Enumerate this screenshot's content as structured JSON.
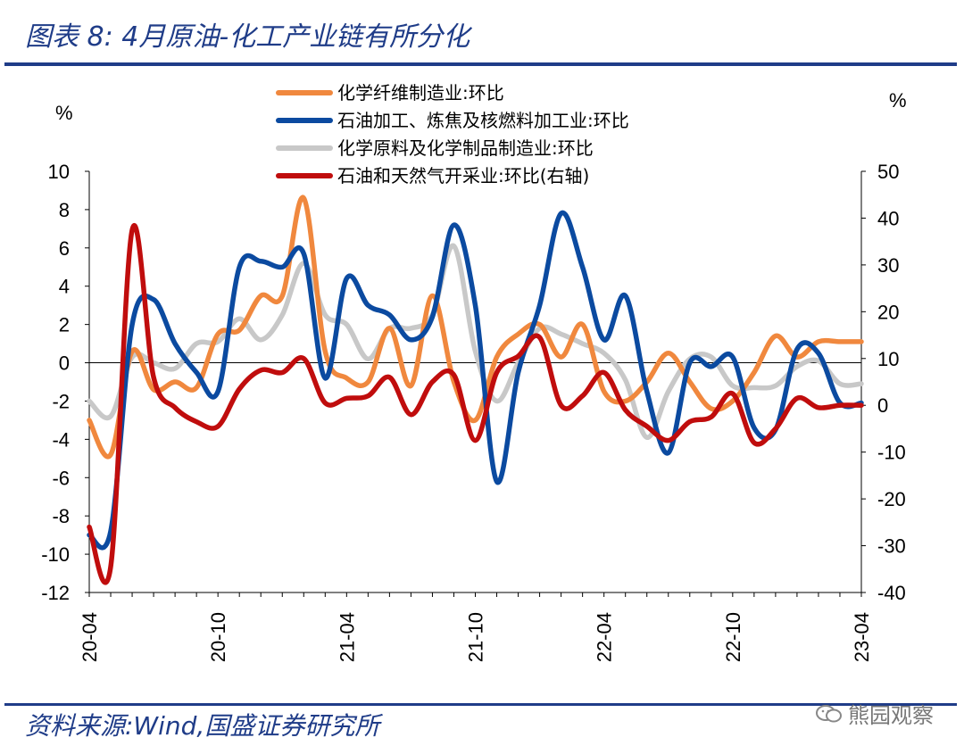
{
  "header": {
    "title": "图表 8:  4月原油-化工产业链有所分化"
  },
  "footer": {
    "source": "资料来源:Wind,国盛证券研究所",
    "watermark": "熊园观察"
  },
  "colors": {
    "brand_blue": "#1f3c88",
    "series_orange": "#f0883e",
    "series_blue": "#0b4aa0",
    "series_gray": "#c8c8c8",
    "series_red": "#c00d0d"
  },
  "chart_data": {
    "type": "line",
    "left_unit": "%",
    "right_unit": "%",
    "x_tick_labels": [
      "20-04",
      "20-10",
      "21-04",
      "21-10",
      "22-04",
      "22-10",
      "23-04"
    ],
    "x_tick_months": [
      0,
      6,
      12,
      18,
      24,
      30,
      36
    ],
    "y_left": {
      "min": -12,
      "max": 10,
      "ticks": [
        -12,
        -10,
        -8,
        -6,
        -4,
        -2,
        0,
        2,
        4,
        6,
        8,
        10
      ]
    },
    "y_right": {
      "min": -40,
      "max": 50,
      "ticks": [
        -40,
        -30,
        -20,
        -10,
        0,
        10,
        20,
        30,
        40,
        50
      ]
    },
    "x": [
      "2020-04",
      "2020-05",
      "2020-06",
      "2020-07",
      "2020-08",
      "2020-09",
      "2020-10",
      "2020-11",
      "2020-12",
      "2021-01",
      "2021-02",
      "2021-03",
      "2021-04",
      "2021-05",
      "2021-06",
      "2021-07",
      "2021-08",
      "2021-09",
      "2021-10",
      "2021-11",
      "2021-12",
      "2022-01",
      "2022-02",
      "2022-03",
      "2022-04",
      "2022-05",
      "2022-06",
      "2022-07",
      "2022-08",
      "2022-09",
      "2022-10",
      "2022-11",
      "2022-12",
      "2023-01",
      "2023-02",
      "2023-03",
      "2023-04"
    ],
    "series": [
      {
        "name": "化学纤维制造业:环比",
        "axis": "left",
        "color": "#f0883e",
        "values": [
          -3.0,
          -4.8,
          0.6,
          -1.4,
          -1.0,
          -1.3,
          1.5,
          1.7,
          3.5,
          3.5,
          8.6,
          0.6,
          -0.8,
          -1.0,
          1.8,
          -1.2,
          3.5,
          -1.0,
          -3.0,
          0.3,
          1.5,
          2.0,
          0.3,
          2.0,
          -1.5,
          -2.0,
          -1.0,
          0.5,
          -1.0,
          -2.4,
          -2.0,
          -0.5,
          1.4,
          0.3,
          1.1,
          1.1,
          1.1
        ]
      },
      {
        "name": "石油加工、炼焦及核燃料加工业:环比",
        "axis": "left",
        "color": "#0b4aa0",
        "values": [
          -9.0,
          -8.8,
          2.0,
          3.3,
          1.0,
          -0.5,
          -1.5,
          5.0,
          5.3,
          5.0,
          5.7,
          -0.8,
          4.4,
          3.0,
          2.5,
          1.2,
          2.4,
          7.2,
          3.0,
          -6.2,
          -0.5,
          3.0,
          7.8,
          5.0,
          1.2,
          3.5,
          -1.5,
          -4.7,
          0.0,
          -0.2,
          0.3,
          -3.4,
          -3.5,
          0.7,
          0.5,
          -2.1,
          -2.1
        ]
      },
      {
        "name": "化学原料及化学制品制造业:环比",
        "axis": "left",
        "color": "#c8c8c8",
        "values": [
          -2.0,
          -2.8,
          0.3,
          0.0,
          -0.3,
          1.0,
          1.1,
          2.3,
          1.2,
          2.5,
          5.2,
          2.5,
          2.0,
          0.2,
          1.8,
          1.8,
          2.5,
          6.1,
          0.6,
          -2.0,
          0.0,
          1.8,
          1.5,
          1.0,
          0.5,
          -0.9,
          -3.9,
          -1.5,
          0.2,
          0.3,
          -1.2,
          -1.3,
          -1.2,
          -0.2,
          0.1,
          -1.1,
          -1.1
        ]
      },
      {
        "name": "石油和天然气开采业:环比(右轴)",
        "axis": "right",
        "color": "#c00d0d",
        "values": [
          -26.0,
          -34.5,
          37.5,
          6.0,
          -0.5,
          -3.5,
          -4.5,
          3.5,
          7.5,
          7.0,
          10.0,
          0.5,
          1.5,
          2.0,
          6.0,
          -2.0,
          5.0,
          6.5,
          -7.5,
          7.0,
          10.5,
          14.5,
          0.0,
          2.0,
          7.0,
          -1.0,
          -4.5,
          -7.5,
          -3.5,
          -2.5,
          2.5,
          -8.0,
          -5.0,
          1.5,
          -0.5,
          0.0,
          0.0
        ]
      }
    ]
  }
}
